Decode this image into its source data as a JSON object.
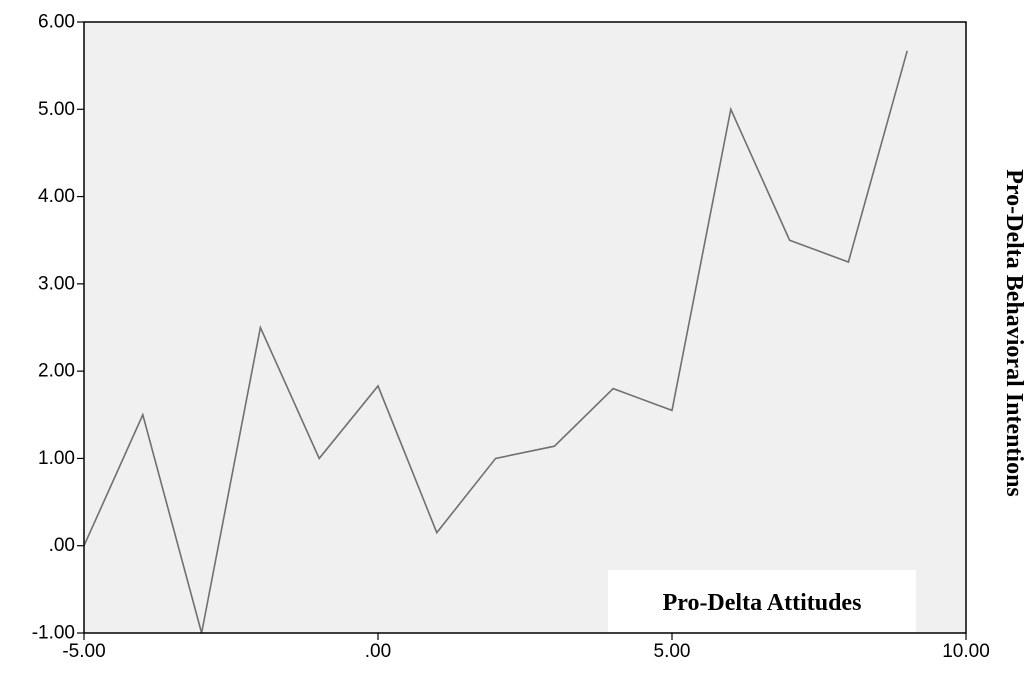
{
  "chart_data": {
    "type": "line",
    "title": "",
    "xlabel": "Pro-Delta Attitudes",
    "ylabel": "Pro-Delta Behavioral Intentions",
    "xlim": [
      -5,
      10
    ],
    "ylim": [
      -1,
      6
    ],
    "x_ticks": [
      "-5.00",
      ".00",
      "5.00",
      "10.00"
    ],
    "x_tick_values": [
      -5,
      0,
      5,
      10
    ],
    "y_ticks": [
      "-1.00",
      ".00",
      "1.00",
      "2.00",
      "3.00",
      "4.00",
      "5.00",
      "6.00"
    ],
    "y_tick_values": [
      -1,
      0,
      1,
      2,
      3,
      4,
      5,
      6
    ],
    "grid": false,
    "plot_background": "#f0f0f0",
    "line_color": "#707070",
    "series": [
      {
        "x": [
          -5,
          -4,
          -3,
          -2,
          -1,
          0,
          1,
          2,
          3,
          4,
          5,
          6,
          7,
          8,
          9
        ],
        "values": [
          0.0,
          1.5,
          -1.0,
          2.5,
          1.0,
          1.83,
          0.15,
          1.0,
          1.14,
          1.8,
          1.55,
          5.0,
          3.5,
          3.25,
          5.67
        ]
      }
    ]
  }
}
